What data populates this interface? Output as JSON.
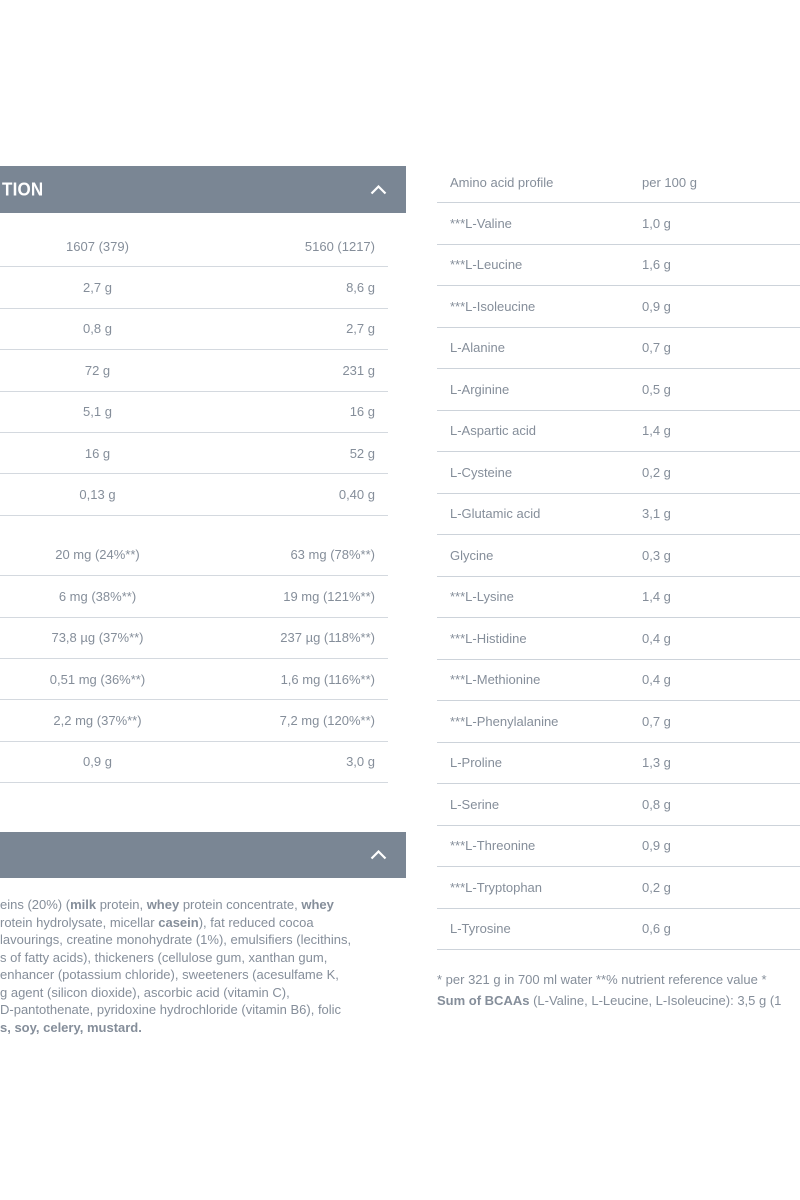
{
  "colors": {
    "accordion_bar": "#7a8694",
    "bar_text": "#ffffff",
    "body_text": "#858e9a",
    "divider": "#cdd3da"
  },
  "nutrition_section": {
    "header_visible_text": "TION",
    "collapse_icon": "chevron-up",
    "table": {
      "rows_main": [
        [
          "1607 (379)",
          "5160 (1217)"
        ],
        [
          "2,7 g",
          "8,6 g"
        ],
        [
          "0,8 g",
          "2,7 g"
        ],
        [
          "72 g",
          "231 g"
        ],
        [
          "5,1 g",
          "16 g"
        ],
        [
          "16 g",
          "52 g"
        ],
        [
          "0,13 g",
          "0,40 g"
        ]
      ],
      "rows_micronutrients": [
        [
          "20 mg (24%**)",
          "63 mg (78%**)"
        ],
        [
          "6 mg (38%**)",
          "19 mg (121%**)"
        ],
        [
          "73,8 µg (37%**)",
          "237 µg (118%**)"
        ],
        [
          "0,51 mg (36%**)",
          "1,6 mg (116%**)"
        ],
        [
          "2,2 mg (37%**)",
          "7,2 mg (120%**)"
        ],
        [
          "0,9 g",
          "3,0 g"
        ]
      ]
    }
  },
  "ingredients_section": {
    "header_visible_text": "",
    "collapse_icon": "chevron-up",
    "lines": [
      [
        {
          "t": "eins (20%) (",
          "b": false
        },
        {
          "t": "milk",
          "b": true
        },
        {
          "t": " protein, ",
          "b": false
        },
        {
          "t": "whey",
          "b": true
        },
        {
          "t": " protein concentrate, ",
          "b": false
        },
        {
          "t": "whey",
          "b": true
        }
      ],
      [
        {
          "t": "rotein hydrolysate, micellar ",
          "b": false
        },
        {
          "t": "casein",
          "b": true
        },
        {
          "t": "), fat reduced cocoa",
          "b": false
        }
      ],
      [
        {
          "t": "lavourings, creatine monohydrate (1%), emulsifiers (lecithins,",
          "b": false
        }
      ],
      [
        {
          "t": "s of fatty acids), thickeners (cellulose gum, xanthan gum,",
          "b": false
        }
      ],
      [
        {
          "t": "enhancer (potassium chloride), sweeteners (acesulfame K,",
          "b": false
        }
      ],
      [
        {
          "t": "g agent (silicon dioxide), ascorbic acid (vitamin C),",
          "b": false
        }
      ],
      [
        {
          "t": "D-pantothenate, pyridoxine hydrochloride (vitamin B6), folic",
          "b": false
        }
      ],
      [
        {
          "t": "s, soy, celery, mustard.",
          "b": true
        }
      ]
    ]
  },
  "amino_acid_section": {
    "header": {
      "label": "Amino acid profile",
      "value": "per 100 g"
    },
    "rows": [
      {
        "name": "***L-Valine",
        "value": "1,0 g"
      },
      {
        "name": "***L-Leucine",
        "value": "1,6 g"
      },
      {
        "name": "***L-Isoleucine",
        "value": "0,9 g"
      },
      {
        "name": "L-Alanine",
        "value": "0,7 g"
      },
      {
        "name": "L-Arginine",
        "value": "0,5 g"
      },
      {
        "name": "L-Aspartic acid",
        "value": "1,4 g"
      },
      {
        "name": "L-Cysteine",
        "value": "0,2 g"
      },
      {
        "name": "L-Glutamic acid",
        "value": "3,1 g"
      },
      {
        "name": "Glycine",
        "value": "0,3 g"
      },
      {
        "name": "***L-Lysine",
        "value": "1,4 g"
      },
      {
        "name": "***L-Histidine",
        "value": "0,4 g"
      },
      {
        "name": "***L-Methionine",
        "value": "0,4 g"
      },
      {
        "name": "***L-Phenylalanine",
        "value": "0,7 g"
      },
      {
        "name": "L-Proline",
        "value": "1,3 g"
      },
      {
        "name": "L-Serine",
        "value": "0,8 g"
      },
      {
        "name": "***L-Threonine",
        "value": "0,9 g"
      },
      {
        "name": "***L-Tryptophan",
        "value": "0,2 g"
      },
      {
        "name": "L-Tyrosine",
        "value": "0,6 g"
      }
    ],
    "footnotes": {
      "line1": "* per 321 g in 700 ml water **% nutrient reference value *",
      "line2_segments": [
        {
          "t": "Sum of BCAAs",
          "b": true
        },
        {
          "t": " (L-Valine, L-Leucine, L-Isoleucine): 3,5 g (1",
          "b": false
        }
      ]
    }
  }
}
